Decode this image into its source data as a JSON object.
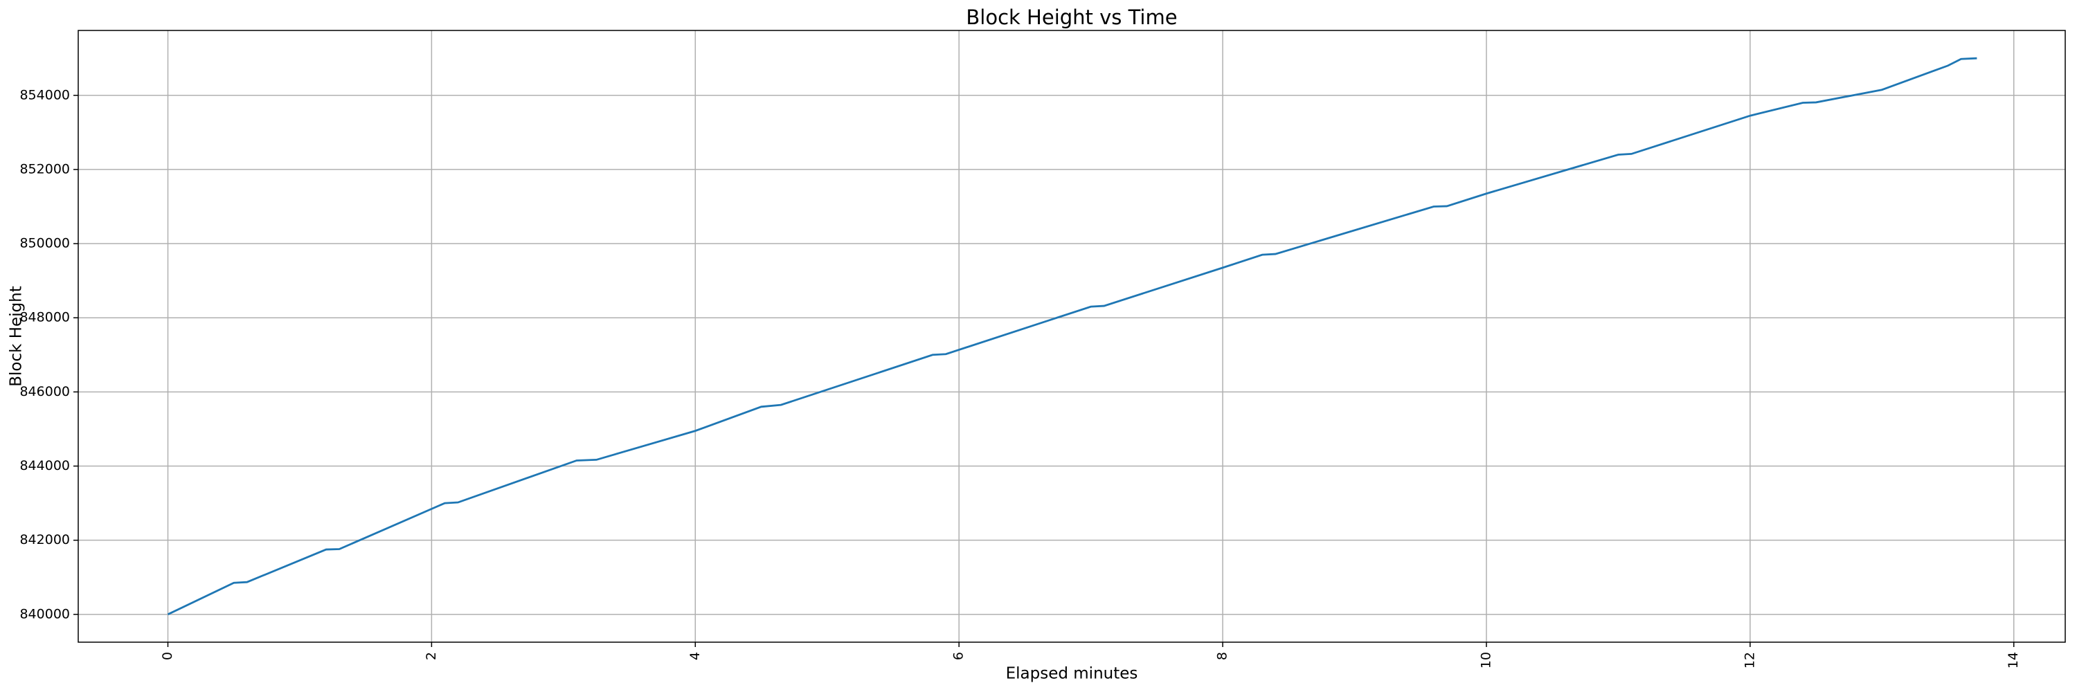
{
  "chart_data": {
    "type": "line",
    "title": "Block Height vs Time",
    "xlabel": "Elapsed minutes",
    "ylabel": "Block Height",
    "x": [
      0,
      0.5,
      0.6,
      1.2,
      1.3,
      2.1,
      2.2,
      3.1,
      3.25,
      4,
      4.5,
      4.65,
      5.8,
      5.9,
      7,
      7.1,
      8,
      8.3,
      8.4,
      9.6,
      9.7,
      10,
      11,
      11.1,
      12,
      12.4,
      12.5,
      13,
      13.5,
      13.6,
      13.72
    ],
    "series": [
      {
        "name": "Block Height",
        "color": "#1f77b4",
        "values": [
          840000,
          840850,
          840870,
          841750,
          841760,
          843000,
          843020,
          844150,
          844170,
          844950,
          845600,
          845650,
          847000,
          847020,
          848300,
          848320,
          849350,
          849700,
          849720,
          851000,
          851010,
          851350,
          852400,
          852420,
          853450,
          853800,
          853810,
          854150,
          854800,
          854980,
          855000
        ]
      }
    ],
    "xlim": [
      -0.68,
      14.39
    ],
    "ylim": [
      839250,
      855750
    ],
    "xticks": [
      0,
      2,
      4,
      6,
      8,
      10,
      12,
      14
    ],
    "yticks": [
      840000,
      842000,
      844000,
      846000,
      848000,
      850000,
      852000,
      854000
    ],
    "grid": true
  }
}
